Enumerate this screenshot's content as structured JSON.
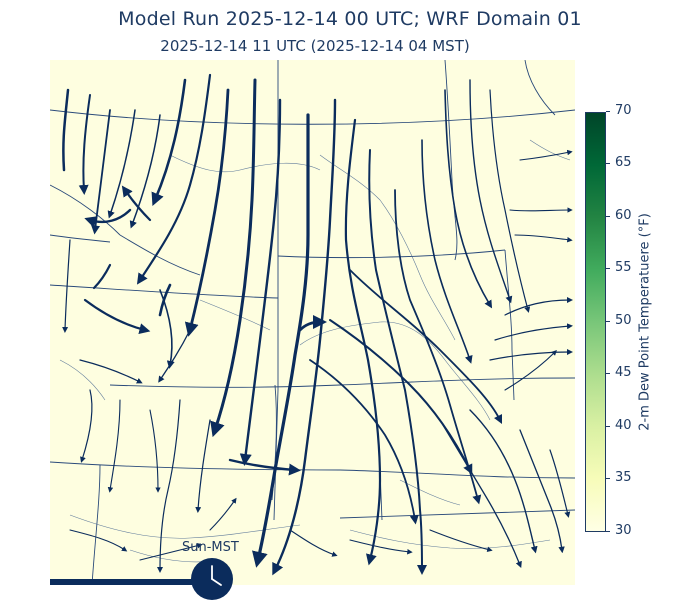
{
  "header": {
    "title": "Model Run 2025-12-14 00 UTC; WRF Domain 01",
    "subtitle": "2025-12-14 11 UTC  (2025-12-14 04 MST)"
  },
  "colorbar": {
    "label": "2-m Dew Point Temperatuere (°F)",
    "ticks": [
      "70",
      "65",
      "60",
      "55",
      "50",
      "45",
      "40",
      "35",
      "30"
    ],
    "colors": [
      "#004529",
      "#006837",
      "#238443",
      "#41ab5d",
      "#78c679",
      "#addd8e",
      "#d9f0a3",
      "#f7fcb9",
      "#ffffe5"
    ],
    "range": [
      30,
      70
    ]
  },
  "timeline": {
    "clock_label": "Sun-MST",
    "progress": 0.3
  },
  "map": {
    "background_color": "#fefee0",
    "streamline_color": "#0b2c5c",
    "boundary_color": "#2a4a7a"
  }
}
